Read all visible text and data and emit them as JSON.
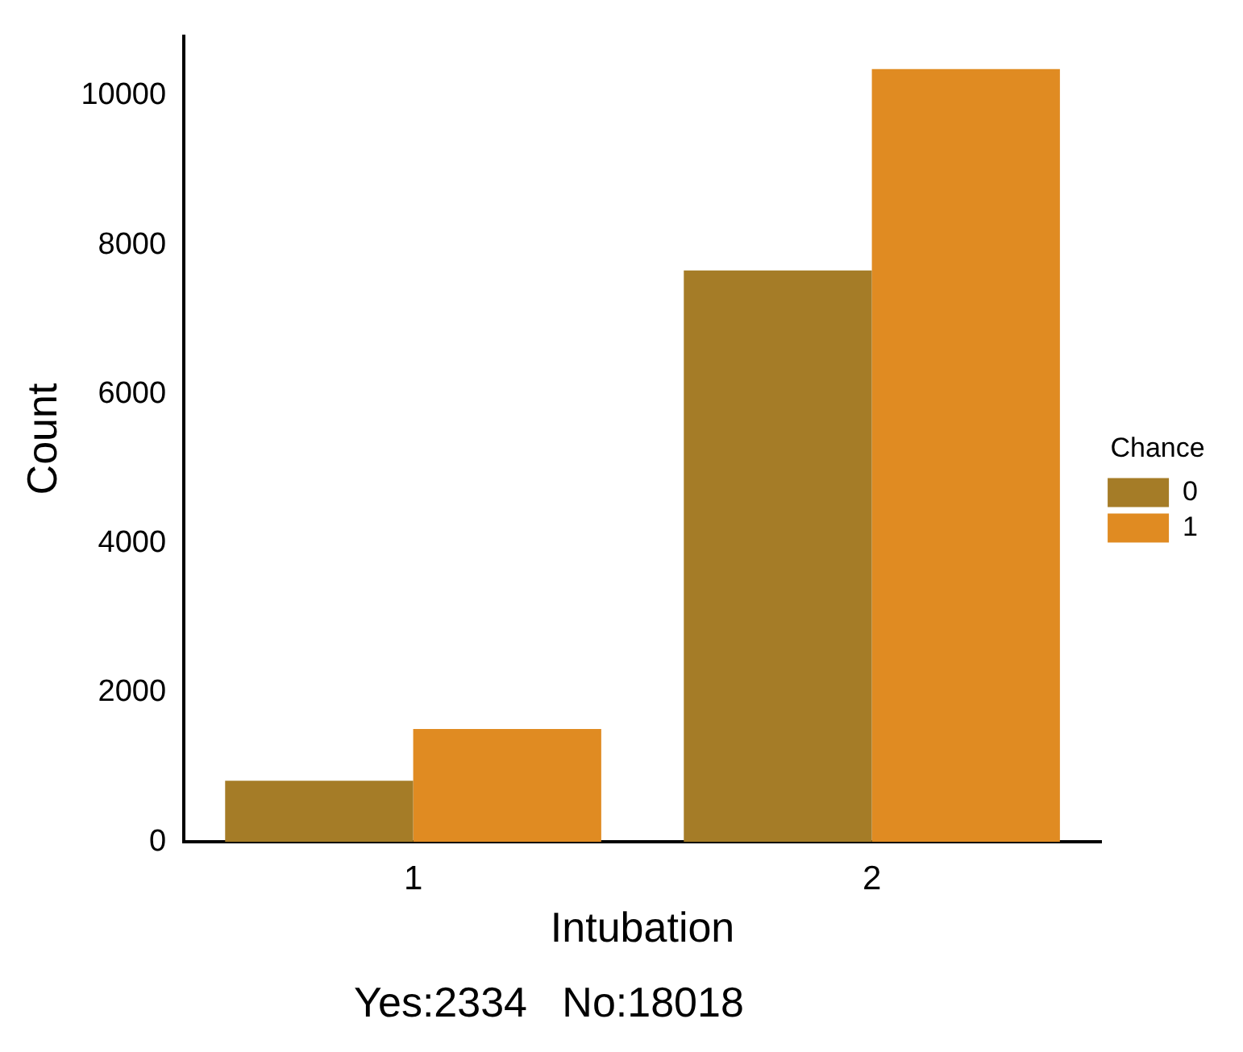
{
  "chart_data": {
    "type": "bar",
    "xlabel": "Intubation",
    "ylabel": "Count",
    "legend_title": "Chance",
    "categories": [
      "1",
      "2"
    ],
    "series": [
      {
        "name": "0",
        "color": "#a57c27",
        "values": [
          820,
          7660
        ]
      },
      {
        "name": "1",
        "color": "#e08b22",
        "values": [
          1514,
          10358
        ]
      }
    ],
    "ylim": [
      0,
      10800
    ],
    "yticks": [
      0,
      2000,
      4000,
      6000,
      8000,
      10000
    ],
    "grid": false,
    "legend": "right",
    "annotations": [
      "Yes:2334   No:18018"
    ]
  }
}
